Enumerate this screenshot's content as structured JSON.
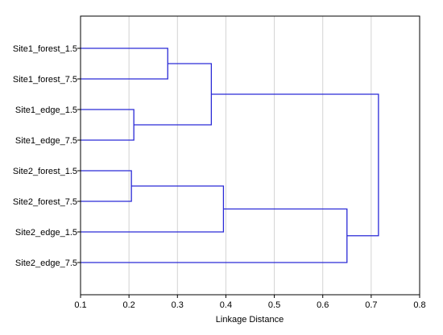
{
  "chart_data": {
    "type": "dendrogram",
    "title": "",
    "xlabel": "Linkage Distance",
    "ylabel": "",
    "xlim": [
      0.1,
      0.8
    ],
    "xticks": [
      0.1,
      0.2,
      0.3,
      0.4,
      0.5,
      0.6,
      0.7,
      0.8
    ],
    "grid": "vertical",
    "line_color": "#2a2ad6",
    "leaves": [
      "Site1_forest_1.5",
      "Site1_forest_7.5",
      "Site1_edge_1.5",
      "Site1_edge_7.5",
      "Site2_forest_1.5",
      "Site2_forest_7.5",
      "Site2_edge_1.5",
      "Site2_edge_7.5"
    ],
    "merges": [
      {
        "id": "c1",
        "left": "Site1_forest_1.5",
        "right": "Site1_forest_7.5",
        "distance": 0.28
      },
      {
        "id": "c2",
        "left": "Site1_edge_1.5",
        "right": "Site1_edge_7.5",
        "distance": 0.21
      },
      {
        "id": "c3",
        "left": "c1",
        "right": "c2",
        "distance": 0.37
      },
      {
        "id": "c4",
        "left": "Site2_forest_1.5",
        "right": "Site2_forest_7.5",
        "distance": 0.205
      },
      {
        "id": "c5",
        "left": "c4",
        "right": "Site2_edge_1.5",
        "distance": 0.395
      },
      {
        "id": "c6",
        "left": "c5",
        "right": "Site2_edge_7.5",
        "distance": 0.65
      },
      {
        "id": "c7",
        "left": "c3",
        "right": "c6",
        "distance": 0.715
      }
    ]
  }
}
